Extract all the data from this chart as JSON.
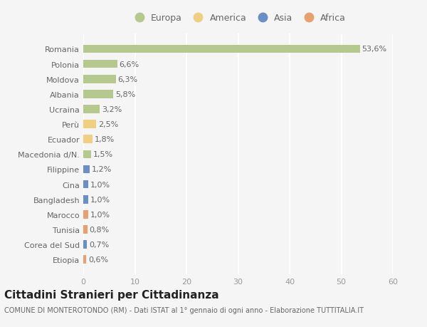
{
  "countries": [
    "Romania",
    "Polonia",
    "Moldova",
    "Albania",
    "Ucraina",
    "Perù",
    "Ecuador",
    "Macedonia d/N.",
    "Filippine",
    "Cina",
    "Bangladesh",
    "Marocco",
    "Tunisia",
    "Corea del Sud",
    "Etiopia"
  ],
  "values": [
    53.6,
    6.6,
    6.3,
    5.8,
    3.2,
    2.5,
    1.8,
    1.5,
    1.2,
    1.0,
    1.0,
    1.0,
    0.8,
    0.7,
    0.6
  ],
  "labels": [
    "53,6%",
    "6,6%",
    "6,3%",
    "5,8%",
    "3,2%",
    "2,5%",
    "1,8%",
    "1,5%",
    "1,2%",
    "1,0%",
    "1,0%",
    "1,0%",
    "0,8%",
    "0,7%",
    "0,6%"
  ],
  "continents": [
    "Europa",
    "Europa",
    "Europa",
    "Europa",
    "Europa",
    "America",
    "America",
    "Europa",
    "Asia",
    "Asia",
    "Asia",
    "Africa",
    "Africa",
    "Asia",
    "Africa"
  ],
  "colors": {
    "Europa": "#b5c98e",
    "America": "#f0d080",
    "Asia": "#6b8ec4",
    "Africa": "#e8a070"
  },
  "legend_order": [
    "Europa",
    "America",
    "Asia",
    "Africa"
  ],
  "xlim": [
    0,
    60
  ],
  "xticks": [
    0,
    10,
    20,
    30,
    40,
    50,
    60
  ],
  "title": "Cittadini Stranieri per Cittadinanza",
  "subtitle": "COMUNE DI MONTEROTONDO (RM) - Dati ISTAT al 1° gennaio di ogni anno - Elaborazione TUTTITALIA.IT",
  "background_color": "#f5f5f5",
  "grid_color": "#ffffff",
  "bar_height": 0.55,
  "title_fontsize": 11,
  "subtitle_fontsize": 7,
  "label_fontsize": 8,
  "tick_fontsize": 8,
  "legend_fontsize": 9
}
